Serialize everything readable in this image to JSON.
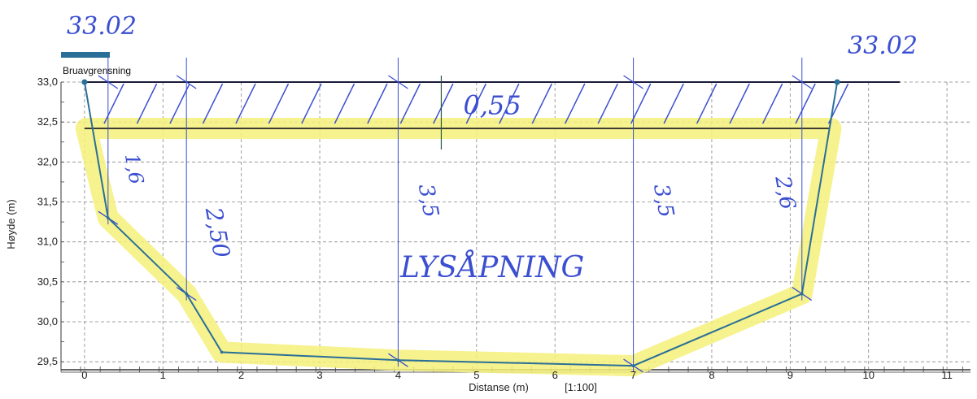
{
  "chart_data": {
    "type": "line",
    "xlabel": "Distanse (m)",
    "scale_label": "[1:100]",
    "ylabel": "Høyde (m)",
    "xlim": [
      -0.3,
      11.3
    ],
    "ylim": [
      29.4,
      33.0
    ],
    "x_ticks": [
      "0",
      "1",
      "2",
      "3",
      "4",
      "5",
      "6",
      "7",
      "8",
      "9",
      "10",
      "11"
    ],
    "y_ticks": [
      "33,0",
      "32,5",
      "32,0",
      "31,5",
      "31,0",
      "30,5",
      "30,0",
      "29,5"
    ],
    "grid": true,
    "legend": {
      "position": "top-left",
      "entries": [
        "Bruavgrensning"
      ]
    },
    "series": [
      {
        "name": "Bruavgrensning",
        "color": "#2a6f97",
        "points": [
          {
            "x": 0.0,
            "y": 33.0
          },
          {
            "x": 0.3,
            "y": 31.3
          },
          {
            "x": 1.3,
            "y": 30.35
          },
          {
            "x": 1.75,
            "y": 29.62
          },
          {
            "x": 4.0,
            "y": 29.52
          },
          {
            "x": 7.0,
            "y": 29.45
          },
          {
            "x": 9.15,
            "y": 30.35
          },
          {
            "x": 9.6,
            "y": 33.0
          }
        ]
      }
    ],
    "annotations": {
      "left_level": "33.02",
      "right_level": "33.02",
      "deck_thickness": "0,55",
      "heights": [
        {
          "x": 0.3,
          "label": "1,6"
        },
        {
          "x": 1.3,
          "label": "2,50"
        },
        {
          "x": 4.0,
          "label": "3,5"
        },
        {
          "x": 7.0,
          "label": "3,5"
        },
        {
          "x": 9.15,
          "label": "2,6"
        }
      ],
      "opening_label": "LYSÅPNING",
      "deck_underside_y": 32.42
    },
    "colors": {
      "highlight": "#f4f07a",
      "handwriting": "#3b4fd0",
      "grid": "#888888"
    }
  }
}
